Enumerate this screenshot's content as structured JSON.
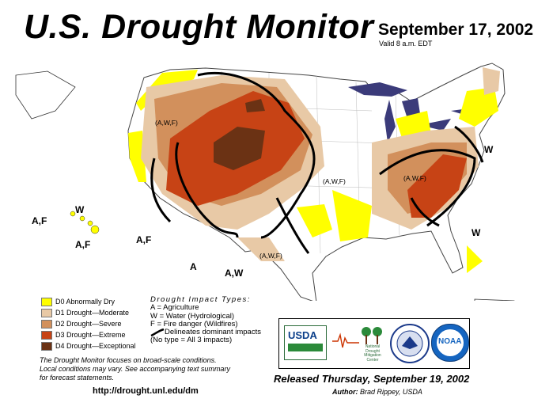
{
  "title": "U.S. Drought Monitor",
  "date": "September 17, 2002",
  "valid": "Valid 8 a.m. EDT",
  "legend": [
    {
      "label": "D0 Abnormally Dry",
      "color": "#ffff00"
    },
    {
      "label": "D1 Drought—Moderate",
      "color": "#e8c9a6"
    },
    {
      "label": "D2 Drought—Severe",
      "color": "#d2905c"
    },
    {
      "label": "D3 Drought—Extreme",
      "color": "#c74315"
    },
    {
      "label": "D4 Drought—Exceptional",
      "color": "#6b3214"
    }
  ],
  "impact": {
    "heading": "Drought  Impact  Types:",
    "lines": [
      "A = Agriculture",
      "W = Water (Hydrological)",
      "F = Fire danger (Wildfires)"
    ],
    "delineates": "Delineates dominant impacts",
    "noType": "(No type = All 3 impacts)"
  },
  "note": {
    "line1": "The Drought Monitor focuses on broad-scale conditions.",
    "line2": "Local conditions may vary. See accompanying text summary",
    "line3": "for forecast statements."
  },
  "url": "http://drought.unl.edu/dm",
  "released": "Released Thursday, September 19, 2002",
  "author_label": "Author:",
  "author_name": "Brad Rippey, USDA",
  "logos": {
    "usda": "USDA",
    "ndmc1": "National",
    "ndmc2": "Drought",
    "ndmc3": "Mitigation",
    "ndmc4": "Center",
    "noaa": "NOAA"
  },
  "map_labels": {
    "awf_nw": "(A,W,F)",
    "awf_plains": "(A,W,F)",
    "awf_east": "(A,W,F)",
    "awf_tx": "(A,W,F)",
    "w_hawaii": "W",
    "af_hawaii1": "A,F",
    "af_hawaii2": "A,F",
    "af_west": "A,F",
    "a_sw": "A",
    "aw_tx": "A,W",
    "w_ne": "W",
    "w_se": "W"
  }
}
